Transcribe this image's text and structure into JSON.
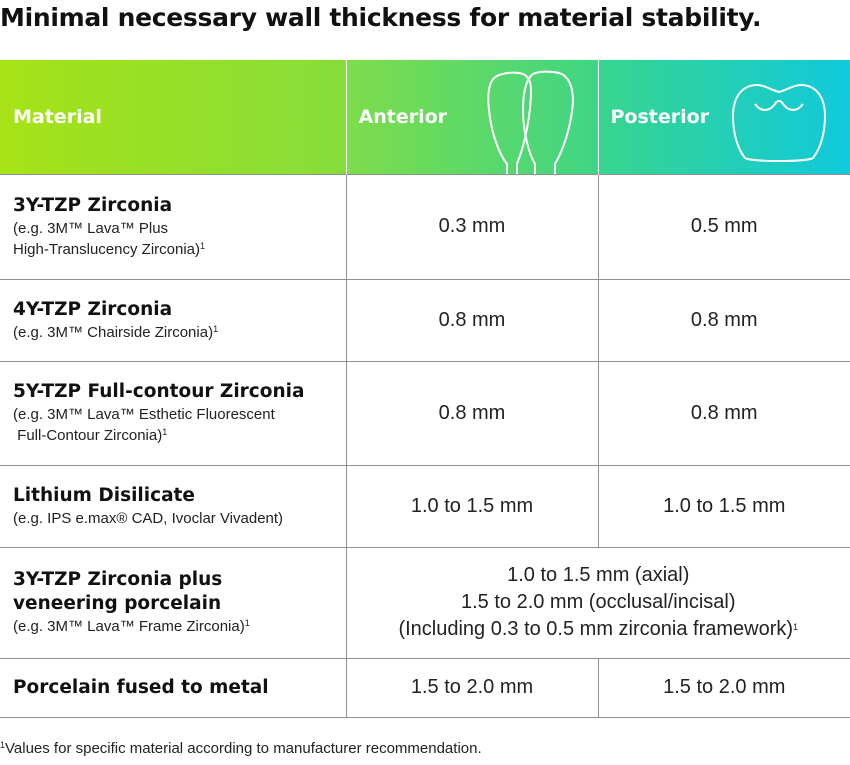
{
  "title": "Minimal necessary wall thickness for material stability.",
  "header": {
    "material": "Material",
    "anterior": "Anterior",
    "posterior": "Posterior",
    "anterior_icon": "anterior-teeth-icon",
    "posterior_icon": "molar-tooth-icon"
  },
  "rows": [
    {
      "name": "3Y-TZP Zirconia",
      "sub_lines": [
        "(e.g. 3M™ Lava™ Plus",
        "High-Translucency Zirconia)"
      ],
      "sup": "1",
      "anterior": "0.3 mm",
      "posterior": "0.5 mm"
    },
    {
      "name": "4Y-TZP Zirconia",
      "sub_lines": [
        "(e.g. 3M™ Chairside Zirconia)"
      ],
      "sup": "1",
      "anterior": "0.8 mm",
      "posterior": "0.8 mm"
    },
    {
      "name": "5Y-TZP Full-contour Zirconia",
      "sub_lines": [
        "(e.g. 3M™ Lava™ Esthetic Fluorescent",
        " Full-Contour Zirconia)"
      ],
      "sup": "1",
      "anterior": "0.8 mm",
      "posterior": "0.8 mm"
    },
    {
      "name": "Lithium Disilicate",
      "sub_lines": [
        "(e.g. IPS e.max® CAD, Ivoclar Vivadent)"
      ],
      "sup": "",
      "anterior": "1.0 to 1.5 mm",
      "posterior": "1.0 to 1.5 mm"
    },
    {
      "name_lines": [
        "3Y-TZP Zirconia plus",
        "veneering porcelain"
      ],
      "sub_lines": [
        "(e.g. 3M™ Lava™ Frame Zirconia)"
      ],
      "sup": "1",
      "combined_lines": [
        "1.0 to 1.5 mm (axial)",
        "1.5 to 2.0 mm (occlusal/incisal)",
        "(Including 0.3 to 0.5 mm zirconia framework)"
      ],
      "combined_sup": "1"
    },
    {
      "name": "Porcelain fused to metal",
      "anterior": "1.5 to 2.0 mm",
      "posterior": "1.5 to 2.0 mm"
    }
  ],
  "footnote": {
    "sup": "1",
    "text": "Values for specific material according to manufacturer recommendation."
  },
  "colors": {
    "header_start": "#a6e217",
    "header_mid": "#3fd585",
    "header_end": "#10c9dc",
    "grid": "#8f8f8f"
  }
}
